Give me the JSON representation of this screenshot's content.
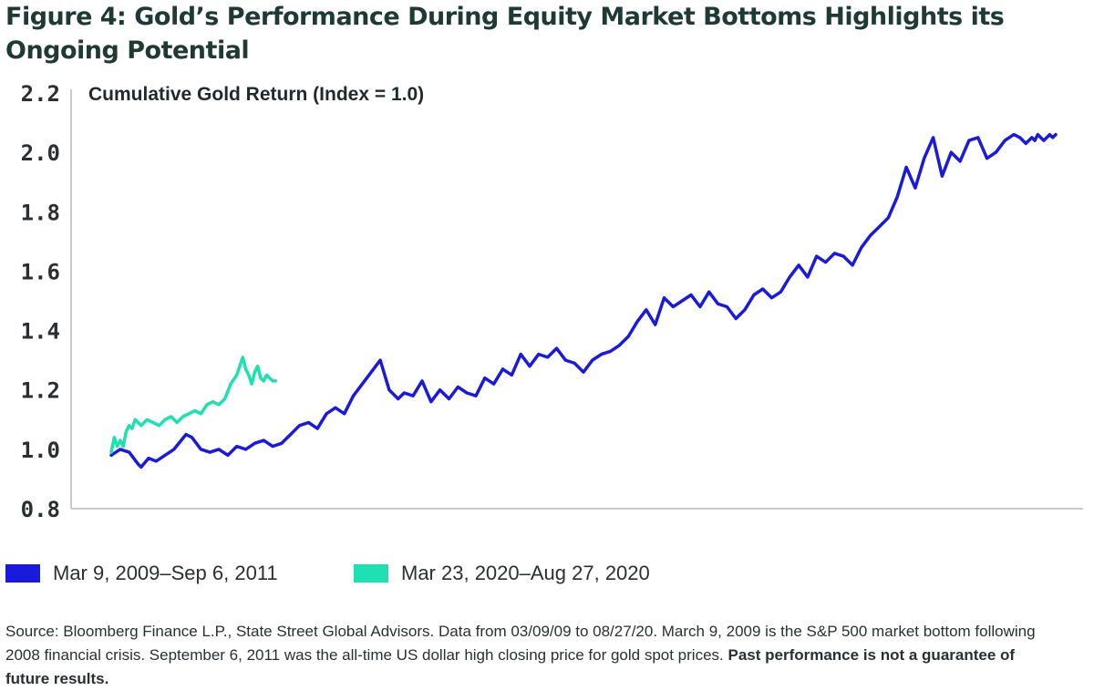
{
  "title": "Figure 4: Gold’s Performance During Equity Market Bottoms Highlights its Ongoing Potential",
  "source_text": "Source: Bloomberg Finance L.P., State Street Global Advisors. Data from 03/09/09 to 08/27/20. March 9, 2009 is the S&P 500 market bottom following 2008 financial crisis. September 6, 2011 was the all-time US dollar high closing price for gold spot prices.",
  "disclaimer": "Past performance is not a guarantee of future results.",
  "chart_data": {
    "type": "line",
    "title": "Figure 4: Gold’s Performance During Equity Market Bottoms Highlights its Ongoing Potential",
    "ylabel": "Cumulative Gold Return (Index = 1.0)",
    "xlabel": "",
    "ylim": [
      0.8,
      2.2
    ],
    "yticks": [
      "0.8",
      "1.0",
      "1.2",
      "1.4",
      "1.6",
      "1.8",
      "2.0",
      "2.2"
    ],
    "ytick_values": [
      0.8,
      1.0,
      1.2,
      1.4,
      1.6,
      1.8,
      2.0,
      2.2
    ],
    "grid": false,
    "legend_position": "bottom-left",
    "x_units": "trading days from market bottom",
    "xlim": [
      0,
      632
    ],
    "series": [
      {
        "name": "Mar 9, 2009–Sep 6, 2011",
        "color": "#1a1adc",
        "x": [
          0,
          6,
          12,
          18,
          20,
          25,
          30,
          36,
          42,
          50,
          54,
          60,
          66,
          72,
          78,
          84,
          90,
          96,
          102,
          108,
          114,
          120,
          126,
          132,
          138,
          144,
          150,
          156,
          162,
          168,
          174,
          180,
          186,
          192,
          196,
          202,
          208,
          214,
          220,
          226,
          232,
          238,
          244,
          250,
          256,
          262,
          268,
          274,
          280,
          286,
          292,
          298,
          304,
          310,
          316,
          322,
          328,
          334,
          340,
          346,
          352,
          358,
          364,
          370,
          376,
          382,
          388,
          394,
          400,
          406,
          412,
          418,
          424,
          430,
          436,
          442,
          448,
          454,
          460,
          466,
          472,
          478,
          484,
          490,
          496,
          502,
          508,
          514,
          520,
          526,
          532,
          538,
          544,
          550,
          556,
          562,
          568,
          574,
          580,
          586,
          592,
          598,
          604,
          608,
          612,
          616,
          618,
          620,
          622,
          624,
          626,
          628,
          630,
          632
        ],
        "values": [
          0.98,
          1.0,
          0.99,
          0.95,
          0.94,
          0.97,
          0.96,
          0.98,
          1.0,
          1.05,
          1.04,
          1.0,
          0.99,
          1.0,
          0.98,
          1.01,
          1.0,
          1.02,
          1.03,
          1.01,
          1.02,
          1.05,
          1.08,
          1.09,
          1.07,
          1.12,
          1.14,
          1.12,
          1.18,
          1.22,
          1.26,
          1.3,
          1.2,
          1.17,
          1.19,
          1.18,
          1.23,
          1.16,
          1.2,
          1.17,
          1.21,
          1.19,
          1.18,
          1.24,
          1.22,
          1.27,
          1.25,
          1.32,
          1.28,
          1.32,
          1.31,
          1.34,
          1.3,
          1.29,
          1.26,
          1.3,
          1.32,
          1.33,
          1.35,
          1.38,
          1.43,
          1.47,
          1.42,
          1.51,
          1.48,
          1.5,
          1.52,
          1.48,
          1.53,
          1.49,
          1.48,
          1.44,
          1.47,
          1.52,
          1.54,
          1.51,
          1.53,
          1.58,
          1.62,
          1.58,
          1.65,
          1.63,
          1.66,
          1.65,
          1.62,
          1.68,
          1.72,
          1.75,
          1.78,
          1.85,
          1.95,
          1.88,
          1.98,
          2.05,
          1.92,
          2.0,
          1.97,
          2.04,
          2.05,
          1.98,
          2.0,
          2.04,
          2.06,
          2.05,
          2.03,
          2.05,
          2.04,
          2.06,
          2.05,
          2.04,
          2.05,
          2.06,
          2.05,
          2.06
        ]
      },
      {
        "name": "Mar 23, 2020–Aug 27, 2020",
        "color": "#1ee0b0",
        "x": [
          0,
          2,
          4,
          6,
          8,
          10,
          12,
          14,
          16,
          18,
          20,
          24,
          28,
          32,
          36,
          40,
          44,
          48,
          52,
          56,
          60,
          64,
          68,
          72,
          76,
          80,
          84,
          86,
          88,
          90,
          92,
          94,
          96,
          98,
          100,
          102,
          104,
          106,
          108,
          110
        ],
        "values": [
          0.99,
          1.04,
          1.01,
          1.03,
          1.01,
          1.06,
          1.08,
          1.07,
          1.1,
          1.09,
          1.08,
          1.1,
          1.09,
          1.08,
          1.1,
          1.11,
          1.09,
          1.11,
          1.12,
          1.13,
          1.12,
          1.15,
          1.16,
          1.15,
          1.17,
          1.22,
          1.25,
          1.28,
          1.31,
          1.27,
          1.25,
          1.22,
          1.26,
          1.28,
          1.24,
          1.23,
          1.25,
          1.24,
          1.23,
          1.23
        ]
      }
    ]
  }
}
